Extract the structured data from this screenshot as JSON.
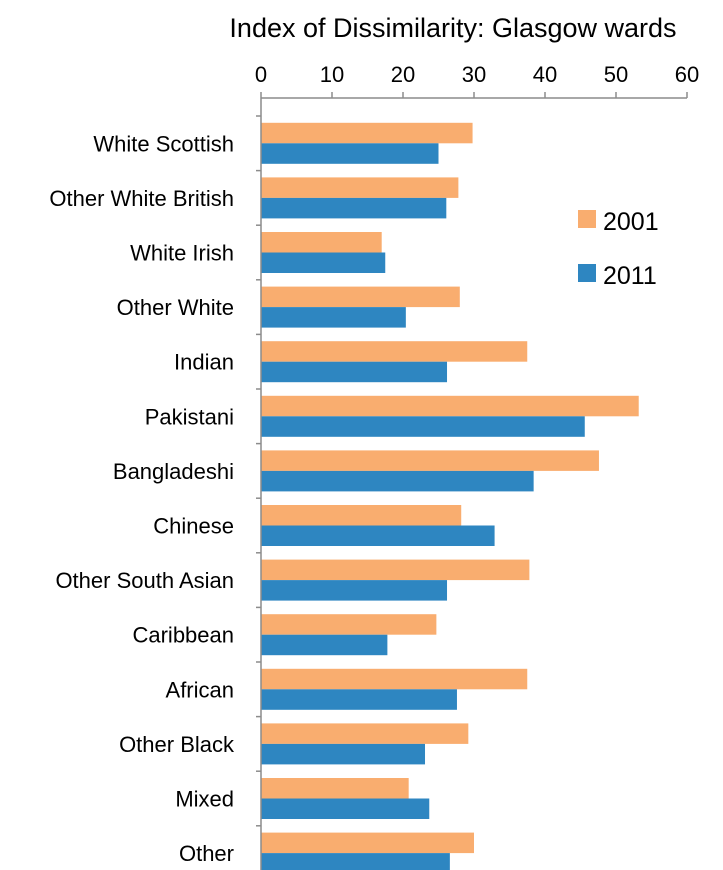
{
  "chart_data": {
    "type": "bar",
    "orientation": "horizontal",
    "title": "Index of Dissimilarity: Glasgow wards",
    "xlim": [
      0,
      60
    ],
    "xticks": [
      "0",
      "10",
      "20",
      "30",
      "40",
      "50",
      "60"
    ],
    "x_axis_position": "top",
    "grid": false,
    "legend_position": "right",
    "categories": [
      "White Scottish",
      "Other White British",
      "White Irish",
      "Other White",
      "Indian",
      "Pakistani",
      "Bangladeshi",
      "Chinese",
      "Other South Asian",
      "Caribbean",
      "African",
      "Other Black",
      "Mixed",
      "Other"
    ],
    "series": [
      {
        "name": "2001",
        "color": "#F9AD6F",
        "values": [
          29.8,
          27.8,
          17.0,
          28.0,
          37.5,
          53.2,
          47.6,
          28.2,
          37.8,
          24.7,
          37.5,
          29.2,
          20.8,
          30.0
        ]
      },
      {
        "name": "2011",
        "color": "#2E86C1",
        "values": [
          25.0,
          26.1,
          17.5,
          20.4,
          26.2,
          45.6,
          38.4,
          32.9,
          26.2,
          17.8,
          27.6,
          23.1,
          23.7,
          26.6
        ]
      }
    ]
  }
}
